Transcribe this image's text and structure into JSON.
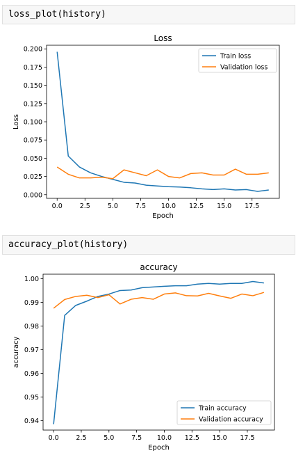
{
  "cells": [
    {
      "code": "loss_plot(history)"
    },
    {
      "code": "accuracy_plot(history)"
    }
  ],
  "chart_data": [
    {
      "type": "line",
      "title": "Loss",
      "xlabel": "Epoch",
      "ylabel": "Loss",
      "xlim": [
        -0.95,
        19.95
      ],
      "ylim": [
        -0.005,
        0.205
      ],
      "xticks": [
        0.0,
        2.5,
        5.0,
        7.5,
        10.0,
        12.5,
        15.0,
        17.5
      ],
      "xtick_labels": [
        "0.0",
        "2.5",
        "5.0",
        "7.5",
        "10.0",
        "12.5",
        "15.0",
        "17.5"
      ],
      "yticks": [
        0.0,
        0.025,
        0.05,
        0.075,
        0.1,
        0.125,
        0.15,
        0.175,
        0.2
      ],
      "ytick_labels": [
        "0.000",
        "0.025",
        "0.050",
        "0.075",
        "0.100",
        "0.125",
        "0.150",
        "0.175",
        "0.200"
      ],
      "legend_position": "top-right",
      "grid": false,
      "x": [
        0,
        1,
        2,
        3,
        4,
        5,
        6,
        7,
        8,
        9,
        10,
        11,
        12,
        13,
        14,
        15,
        16,
        17,
        18,
        19
      ],
      "series": [
        {
          "name": "Train loss",
          "color": "#1f77b4",
          "values": [
            0.196,
            0.053,
            0.038,
            0.03,
            0.025,
            0.021,
            0.017,
            0.016,
            0.013,
            0.012,
            0.011,
            0.0105,
            0.0095,
            0.008,
            0.007,
            0.008,
            0.0065,
            0.007,
            0.0045,
            0.0065
          ]
        },
        {
          "name": "Validation loss",
          "color": "#ff7f0e",
          "values": [
            0.038,
            0.028,
            0.023,
            0.023,
            0.024,
            0.022,
            0.034,
            0.03,
            0.026,
            0.034,
            0.025,
            0.023,
            0.029,
            0.03,
            0.027,
            0.027,
            0.035,
            0.028,
            0.028,
            0.03
          ]
        }
      ]
    },
    {
      "type": "line",
      "title": "accuracy",
      "xlabel": "Epoch",
      "ylabel": "accuracy",
      "xlim": [
        -0.95,
        19.95
      ],
      "ylim": [
        0.936,
        1.0019
      ],
      "xticks": [
        0.0,
        2.5,
        5.0,
        7.5,
        10.0,
        12.5,
        15.0,
        17.5
      ],
      "xtick_labels": [
        "0.0",
        "2.5",
        "5.0",
        "7.5",
        "10.0",
        "12.5",
        "15.0",
        "17.5"
      ],
      "yticks": [
        0.94,
        0.95,
        0.96,
        0.97,
        0.98,
        0.99,
        1.0
      ],
      "ytick_labels": [
        "0.94",
        "0.95",
        "0.96",
        "0.97",
        "0.98",
        "0.99",
        "1.00"
      ],
      "legend_position": "bottom-right",
      "grid": false,
      "x": [
        0,
        1,
        2,
        3,
        4,
        5,
        6,
        7,
        8,
        9,
        10,
        11,
        12,
        13,
        14,
        15,
        16,
        17,
        18,
        19
      ],
      "series": [
        {
          "name": "Train accuracy",
          "color": "#1f77b4",
          "values": [
            0.9385,
            0.9845,
            0.9887,
            0.9905,
            0.9925,
            0.9935,
            0.995,
            0.9952,
            0.9962,
            0.9965,
            0.9968,
            0.997,
            0.997,
            0.9977,
            0.998,
            0.9977,
            0.998,
            0.998,
            0.9988,
            0.9982
          ]
        },
        {
          "name": "Validation accuracy",
          "color": "#ff7f0e",
          "values": [
            0.9875,
            0.9912,
            0.9925,
            0.993,
            0.992,
            0.9932,
            0.9893,
            0.9913,
            0.992,
            0.9913,
            0.9935,
            0.994,
            0.9928,
            0.9927,
            0.9938,
            0.9927,
            0.9917,
            0.9935,
            0.9928,
            0.9942
          ]
        }
      ]
    }
  ]
}
